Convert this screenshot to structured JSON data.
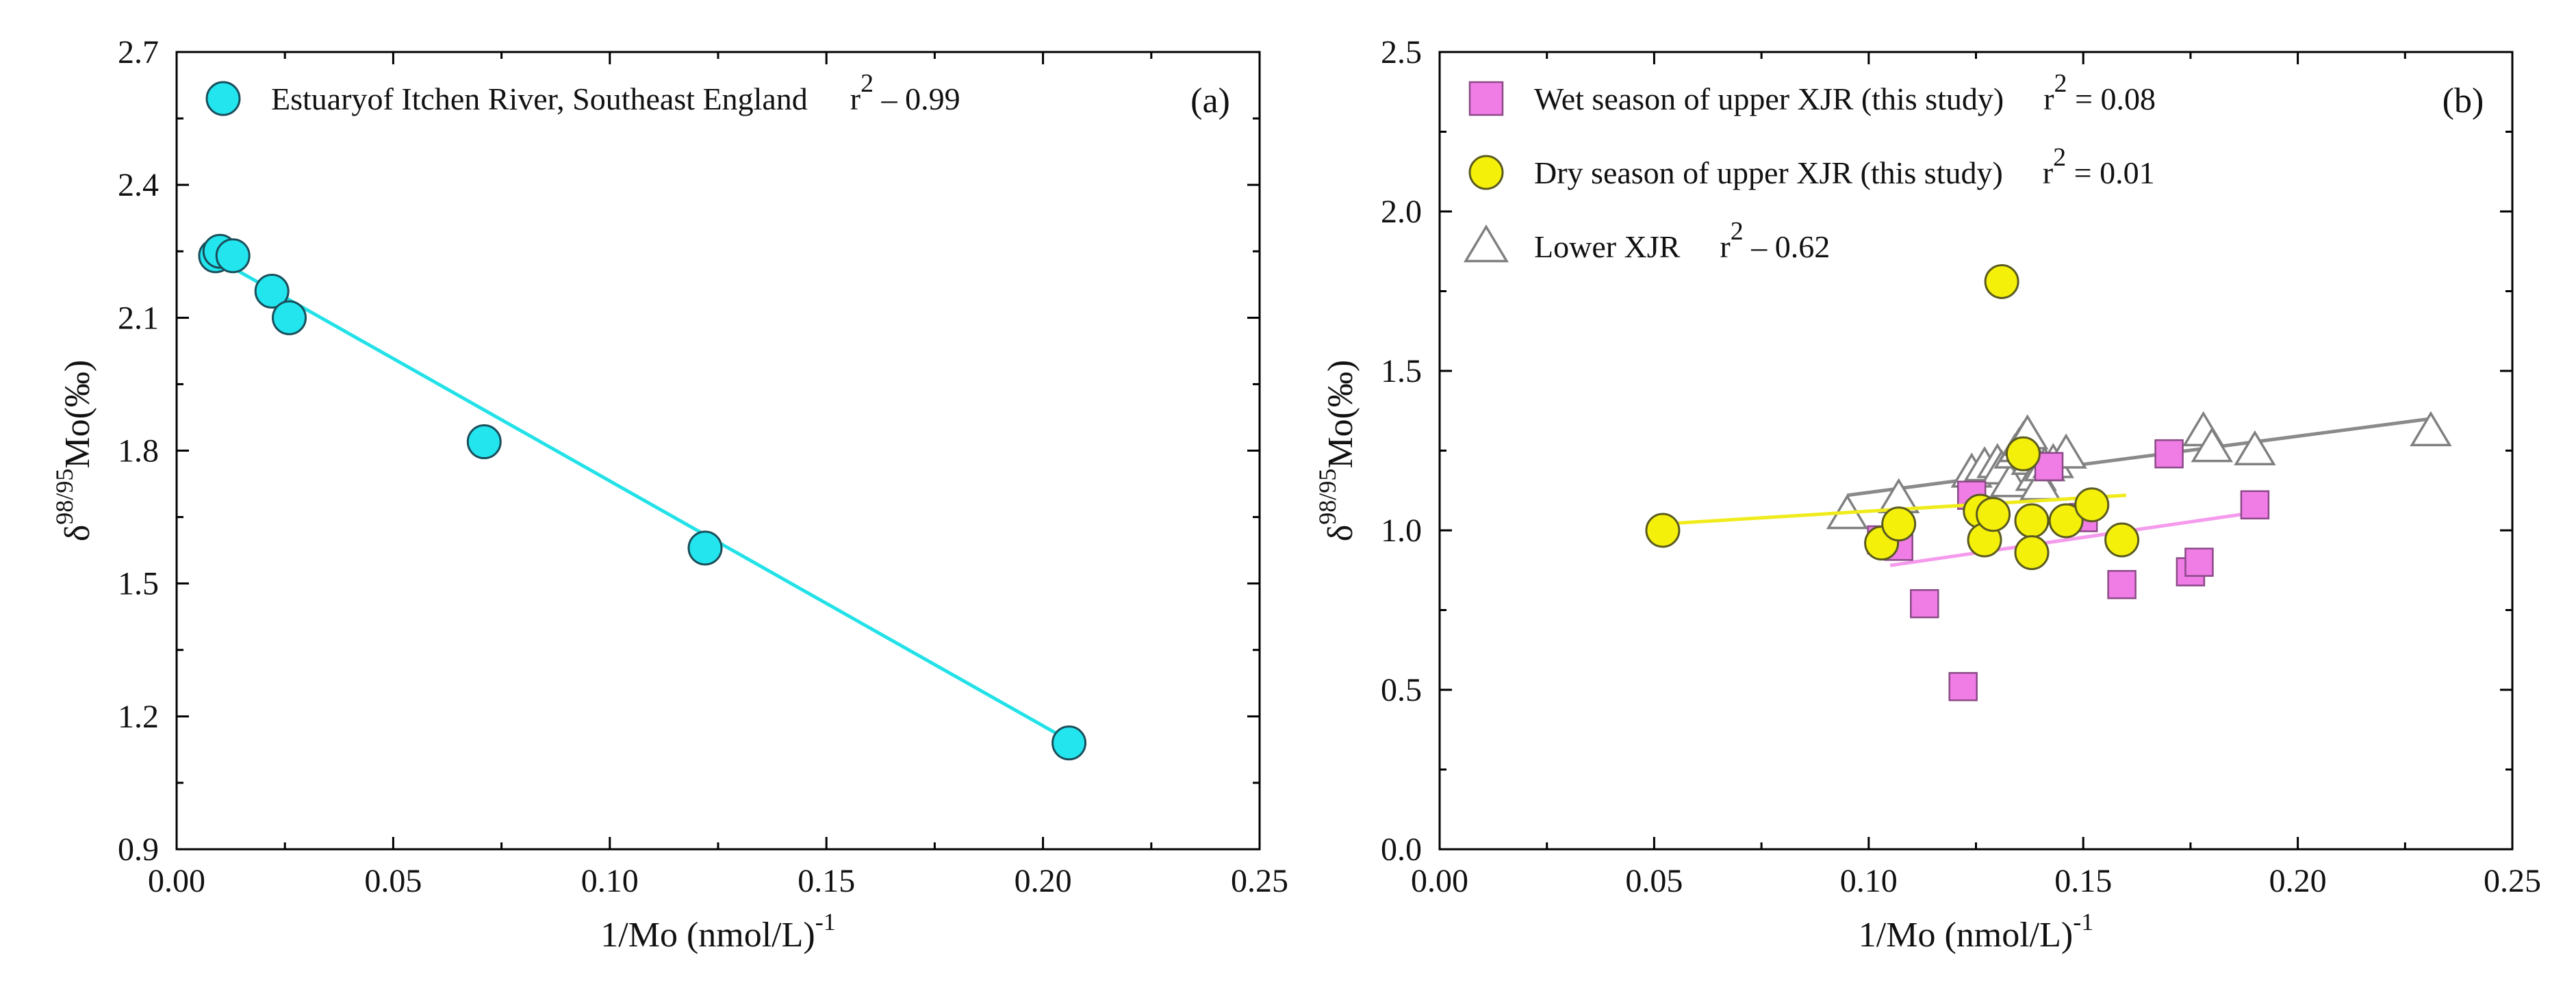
{
  "chart_data": [
    {
      "type": "scatter",
      "panel_label": "(a)",
      "xlabel": "1/Mo (nmol/L)",
      "xlabel_sup": "-1",
      "ylabel_prefix": "δ",
      "ylabel_sup": "98/95",
      "ylabel_main": "Mo(‰)",
      "xlim": [
        0.0,
        0.25
      ],
      "ylim": [
        0.9,
        2.7
      ],
      "xticks": [
        "0.00",
        "0.05",
        "0.10",
        "0.15",
        "0.20",
        "0.25"
      ],
      "yticks": [
        "0.9",
        "1.2",
        "1.5",
        "1.8",
        "2.1",
        "2.4",
        "2.7"
      ],
      "legend_position": "top",
      "series": [
        {
          "name": "Estuaryof Itchen River, Southeast England",
          "r2_label": "r",
          "r2_sup": "2",
          "r2_value": " – 0.99",
          "marker": "circle",
          "fill": "#22E5EE",
          "stroke": "#1A4E5A",
          "line_color": "#22E2E8",
          "fit": {
            "x": [
              0.008,
              0.207
            ],
            "y": [
              2.24,
              1.14
            ]
          },
          "points": [
            [
              0.009,
              2.24
            ],
            [
              0.01,
              2.25
            ],
            [
              0.013,
              2.24
            ],
            [
              0.022,
              2.16
            ],
            [
              0.026,
              2.1
            ],
            [
              0.071,
              1.82
            ],
            [
              0.122,
              1.58
            ],
            [
              0.206,
              1.14
            ]
          ]
        }
      ]
    },
    {
      "type": "scatter",
      "panel_label": "(b)",
      "xlabel": "1/Mo (nmol/L)",
      "xlabel_sup": "-1",
      "ylabel_prefix": "δ",
      "ylabel_sup": "98/95",
      "ylabel_main": "Mo(‰)",
      "xlim": [
        0.0,
        0.25
      ],
      "ylim": [
        0.0,
        2.5
      ],
      "xticks": [
        "0.00",
        "0.05",
        "0.10",
        "0.15",
        "0.20",
        "0.25"
      ],
      "yticks": [
        "0.0",
        "0.5",
        "1.0",
        "1.5",
        "2.0",
        "2.5"
      ],
      "legend_position": "top-left",
      "series": [
        {
          "name": "Lower XJR",
          "r2_label": "r",
          "r2_sup": "2",
          "r2_value": " – 0.62",
          "marker": "triangle",
          "fill": "#ffffff",
          "stroke": "#808080",
          "line_color": "#8A8A8A",
          "fit": {
            "x": [
              0.095,
              0.231
            ],
            "y": [
              1.11,
              1.35
            ]
          },
          "points": [
            [
              0.095,
              1.05
            ],
            [
              0.107,
              1.1
            ],
            [
              0.124,
              1.18
            ],
            [
              0.127,
              1.2
            ],
            [
              0.13,
              1.21
            ],
            [
              0.131,
              1.19
            ],
            [
              0.133,
              1.15
            ],
            [
              0.134,
              1.24
            ],
            [
              0.135,
              1.26
            ],
            [
              0.136,
              1.28
            ],
            [
              0.137,
              1.3
            ],
            [
              0.138,
              1.22
            ],
            [
              0.139,
              1.17
            ],
            [
              0.14,
              1.14
            ],
            [
              0.141,
              1.2
            ],
            [
              0.143,
              1.21
            ],
            [
              0.146,
              1.24
            ],
            [
              0.178,
              1.31
            ],
            [
              0.18,
              1.26
            ],
            [
              0.19,
              1.25
            ],
            [
              0.231,
              1.31
            ]
          ]
        },
        {
          "name": "Wet season of upper XJR (this study)",
          "r2_label": "r",
          "r2_sup": "2",
          "r2_value": " = 0.08",
          "marker": "square",
          "fill": "#F07CE6",
          "stroke": "#8A4A86",
          "line_color": "#F59AEC",
          "fit": {
            "x": [
              0.105,
              0.192
            ],
            "y": [
              0.89,
              1.06
            ]
          },
          "points": [
            [
              0.103,
              0.97
            ],
            [
              0.107,
              0.95
            ],
            [
              0.113,
              0.77
            ],
            [
              0.122,
              0.51
            ],
            [
              0.124,
              1.11
            ],
            [
              0.142,
              1.2
            ],
            [
              0.15,
              1.04
            ],
            [
              0.159,
              0.83
            ],
            [
              0.17,
              1.24
            ],
            [
              0.175,
              0.87
            ],
            [
              0.177,
              0.9
            ],
            [
              0.19,
              1.08
            ]
          ]
        },
        {
          "name": "Dry season of upper XJR (this study)",
          "r2_label": "r",
          "r2_sup": "2",
          "r2_value": " = 0.01",
          "marker": "circle",
          "fill": "#F5F00A",
          "stroke": "#5A5A20",
          "line_color": "#F0EB1A",
          "fit": {
            "x": [
              0.052,
              0.16
            ],
            "y": [
              1.02,
              1.11
            ]
          },
          "points": [
            [
              0.052,
              1.0
            ],
            [
              0.103,
              0.96
            ],
            [
              0.107,
              1.02
            ],
            [
              0.126,
              1.06
            ],
            [
              0.127,
              0.97
            ],
            [
              0.129,
              1.05
            ],
            [
              0.131,
              1.78
            ],
            [
              0.136,
              1.24
            ],
            [
              0.138,
              1.03
            ],
            [
              0.138,
              0.93
            ],
            [
              0.146,
              1.03
            ],
            [
              0.152,
              1.08
            ],
            [
              0.159,
              0.97
            ]
          ]
        }
      ],
      "legend_order": [
        1,
        2,
        0
      ]
    }
  ]
}
